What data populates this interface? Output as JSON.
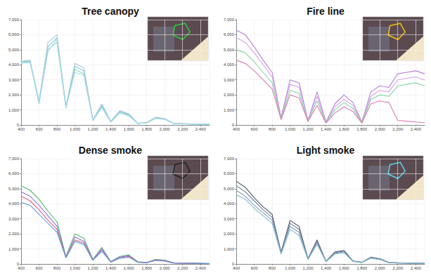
{
  "chart_data": [
    {
      "type": "line",
      "title": "Tree canopy",
      "grid": true,
      "x": [
        400,
        500,
        600,
        700,
        800,
        900,
        1000,
        1100,
        1200,
        1300,
        1400,
        1500,
        1600,
        1700,
        1800,
        1900,
        2000,
        2100,
        2200,
        2300,
        2400,
        2500
      ],
      "xlim": [
        400,
        2500
      ],
      "xticks": [
        400,
        600,
        800,
        1000,
        1200,
        1400,
        1600,
        1800,
        2000,
        2200,
        2400
      ],
      "ylim": [
        0,
        7000
      ],
      "yticks": [
        0,
        1000,
        2000,
        3000,
        4000,
        5000,
        6000,
        7000
      ],
      "series": [
        {
          "color": "#7ec8e3",
          "values": [
            4200,
            4250,
            1500,
            5200,
            5800,
            1200,
            3900,
            3600,
            300,
            1300,
            200,
            900,
            700,
            100,
            150,
            500,
            400,
            100,
            80,
            60,
            50,
            40
          ]
        },
        {
          "color": "#9ad0c2",
          "values": [
            4150,
            4200,
            1400,
            5000,
            5500,
            1100,
            3700,
            3400,
            300,
            1200,
            200,
            850,
            650,
            100,
            150,
            450,
            380,
            100,
            80,
            60,
            50,
            40
          ]
        },
        {
          "color": "#b0c4de",
          "values": [
            4250,
            4300,
            1600,
            5500,
            6000,
            1250,
            4100,
            3800,
            350,
            1400,
            250,
            950,
            750,
            120,
            160,
            520,
            420,
            110,
            90,
            70,
            60,
            40
          ]
        },
        {
          "color": "#a0e0f0",
          "values": [
            4100,
            4150,
            1450,
            4900,
            5700,
            1150,
            3500,
            3300,
            280,
            1150,
            180,
            800,
            600,
            90,
            140,
            430,
            360,
            90,
            70,
            50,
            40,
            30
          ]
        }
      ]
    },
    {
      "type": "line",
      "title": "Fire line",
      "grid": true,
      "x": [
        400,
        500,
        600,
        700,
        800,
        900,
        1000,
        1100,
        1200,
        1300,
        1400,
        1500,
        1600,
        1700,
        1800,
        1900,
        2000,
        2100,
        2200,
        2300,
        2400,
        2500
      ],
      "xlim": [
        400,
        2500
      ],
      "xticks": [
        400,
        600,
        800,
        1000,
        1200,
        1400,
        1600,
        1800,
        2000,
        2200,
        2400
      ],
      "ylim": [
        0,
        7000
      ],
      "yticks": [
        0,
        1000,
        2000,
        3000,
        4000,
        5000,
        6000,
        7000
      ],
      "series": [
        {
          "color": "#b57edc",
          "values": [
            6300,
            6000,
            5200,
            4300,
            3500,
            500,
            3000,
            2800,
            300,
            2200,
            200,
            1400,
            2000,
            1500,
            200,
            2200,
            2600,
            2500,
            3400,
            3500,
            3600,
            3400
          ]
        },
        {
          "color": "#d8a0e8",
          "values": [
            5800,
            5500,
            4800,
            4000,
            3200,
            450,
            2700,
            2500,
            280,
            1900,
            180,
            1200,
            1700,
            1300,
            180,
            1900,
            2300,
            2200,
            3000,
            3100,
            3200,
            3000
          ]
        },
        {
          "color": "#7fd6a0",
          "values": [
            5000,
            4800,
            4200,
            3500,
            2800,
            400,
            2300,
            2100,
            250,
            1600,
            150,
            1000,
            1500,
            1100,
            150,
            1700,
            2000,
            1900,
            2600,
            2700,
            2800,
            2600
          ]
        },
        {
          "color": "#e07ab0",
          "values": [
            4300,
            4100,
            3600,
            3000,
            2400,
            350,
            2000,
            1800,
            220,
            1300,
            120,
            800,
            1200,
            900,
            120,
            1400,
            1600,
            1500,
            300,
            250,
            200,
            150
          ]
        }
      ]
    },
    {
      "type": "line",
      "title": "Dense smoke",
      "grid": true,
      "x": [
        400,
        500,
        600,
        700,
        800,
        900,
        1000,
        1100,
        1200,
        1300,
        1400,
        1500,
        1600,
        1700,
        1800,
        1900,
        2000,
        2100,
        2200,
        2300,
        2400,
        2500
      ],
      "xlim": [
        400,
        2500
      ],
      "xticks": [
        400,
        600,
        800,
        1000,
        1200,
        1400,
        1600,
        1800,
        2000,
        2200,
        2400
      ],
      "ylim": [
        0,
        7000
      ],
      "yticks": [
        0,
        1000,
        2000,
        3000,
        4000,
        5000,
        6000,
        7000
      ],
      "series": [
        {
          "color": "#4fb870",
          "values": [
            5200,
            4900,
            4300,
            3500,
            2800,
            500,
            2000,
            1700,
            300,
            1100,
            150,
            500,
            600,
            150,
            100,
            300,
            250,
            80,
            60,
            50,
            40,
            30
          ]
        },
        {
          "color": "#9370db",
          "values": [
            4800,
            4500,
            3900,
            3200,
            2500,
            450,
            1800,
            1500,
            280,
            1000,
            140,
            450,
            550,
            130,
            90,
            280,
            230,
            70,
            55,
            45,
            35,
            25
          ]
        },
        {
          "color": "#e06080",
          "values": [
            4500,
            4200,
            3600,
            2900,
            2300,
            420,
            1600,
            1400,
            260,
            900,
            130,
            400,
            500,
            120,
            80,
            250,
            200,
            60,
            50,
            40,
            30,
            20
          ]
        },
        {
          "color": "#60a0e0",
          "values": [
            4100,
            3900,
            3300,
            2700,
            2100,
            400,
            1500,
            1300,
            240,
            850,
            120,
            380,
            450,
            110,
            80,
            230,
            190,
            60,
            50,
            40,
            30,
            20
          ]
        }
      ]
    },
    {
      "type": "line",
      "title": "Light smoke",
      "grid": true,
      "x": [
        400,
        500,
        600,
        700,
        800,
        900,
        1000,
        1100,
        1200,
        1300,
        1400,
        1500,
        1600,
        1700,
        1800,
        1900,
        2000,
        2100,
        2200,
        2300,
        2400,
        2500
      ],
      "xlim": [
        400,
        2500
      ],
      "xticks": [
        400,
        600,
        800,
        1000,
        1200,
        1400,
        1600,
        1800,
        2000,
        2200,
        2400
      ],
      "ylim": [
        0,
        7000
      ],
      "yticks": [
        0,
        1000,
        2000,
        3000,
        4000,
        5000,
        6000,
        7000
      ],
      "series": [
        {
          "color": "#555566",
          "values": [
            5500,
            5100,
            4400,
            3800,
            3300,
            800,
            2900,
            2500,
            350,
            1600,
            180,
            800,
            900,
            200,
            120,
            450,
            350,
            100,
            80,
            60,
            50,
            40
          ]
        },
        {
          "color": "#6a7fa0",
          "values": [
            5200,
            4800,
            4200,
            3600,
            3100,
            750,
            2700,
            2300,
            330,
            1500,
            170,
            750,
            850,
            190,
            110,
            420,
            330,
            90,
            70,
            55,
            45,
            35
          ]
        },
        {
          "color": "#8899bb",
          "values": [
            4900,
            4500,
            3900,
            3400,
            2900,
            700,
            2500,
            2100,
            310,
            1400,
            160,
            700,
            800,
            180,
            100,
            400,
            310,
            85,
            65,
            50,
            40,
            30
          ]
        },
        {
          "color": "#80c0d0",
          "values": [
            4600,
            4300,
            3700,
            3200,
            2700,
            650,
            2300,
            1900,
            290,
            1300,
            150,
            650,
            750,
            170,
            95,
            380,
            290,
            80,
            60,
            45,
            35,
            25
          ]
        }
      ]
    }
  ]
}
